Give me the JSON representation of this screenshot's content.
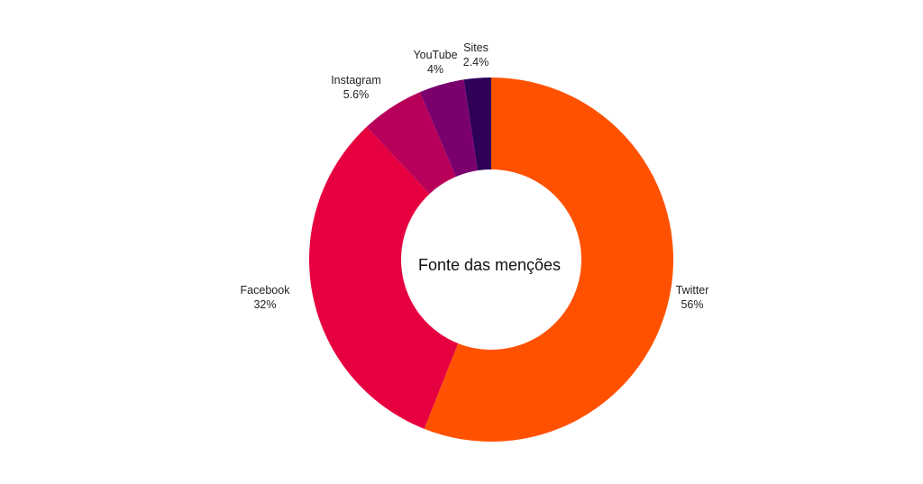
{
  "chart_data": {
    "type": "pie",
    "title": "Fonte das menções",
    "categories": [
      "Twitter",
      "Facebook",
      "Instagram",
      "YouTube",
      "Sites"
    ],
    "values": [
      56,
      32,
      5.6,
      4,
      2.4
    ],
    "value_labels": [
      "56%",
      "32%",
      "5.6%",
      "4%",
      "2.4%"
    ],
    "colors": [
      "#ff5100",
      "#e6003f",
      "#b8005a",
      "#7a006e",
      "#2e0058"
    ],
    "donut": true,
    "legend": "none"
  }
}
